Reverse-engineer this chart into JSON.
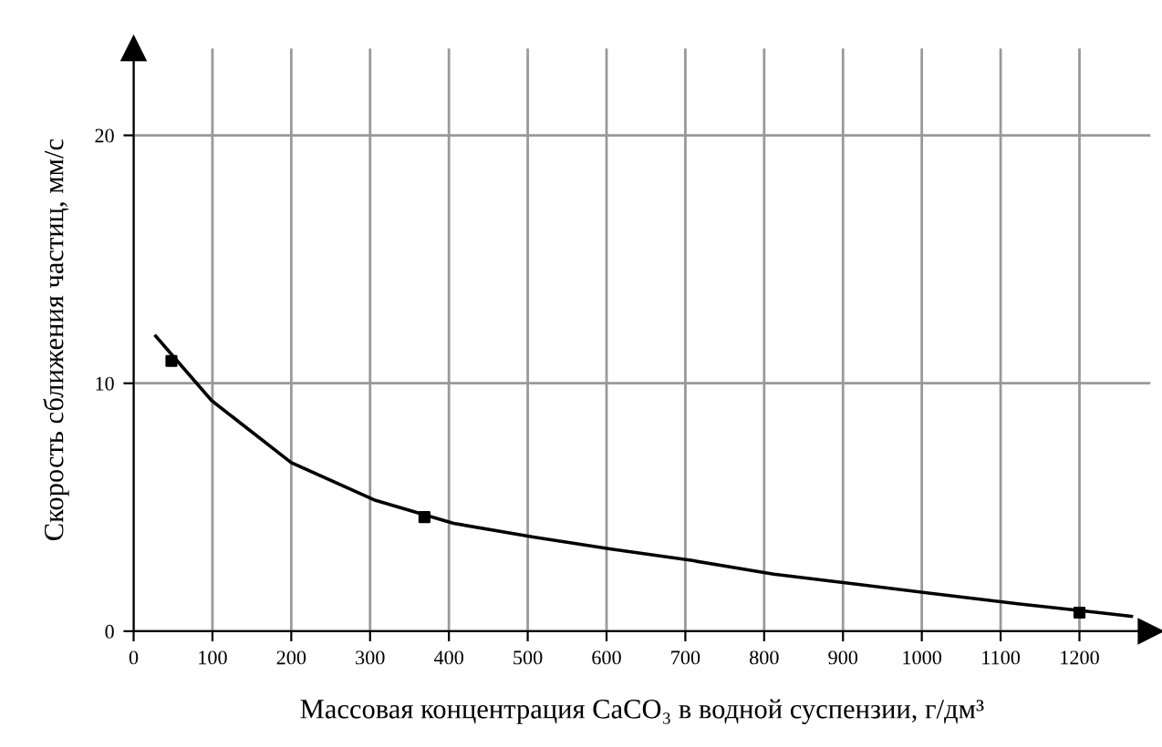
{
  "chart_data": {
    "type": "line",
    "xlabel": "Массовая концентрация CaCO₃ в водной суспензии, г/дм³",
    "ylabel": "Скорость сближения частиц, мм/с",
    "xlim": [
      0,
      1290
    ],
    "ylim": [
      0,
      23.5
    ],
    "xticks": [
      0,
      100,
      200,
      300,
      400,
      500,
      600,
      700,
      800,
      900,
      1000,
      1100,
      1200
    ],
    "yticks": [
      0,
      10,
      20
    ],
    "grid": true,
    "series": [
      {
        "color": "#000000",
        "marker": "none",
        "line_style": "solid",
        "x": [
          28,
          99,
          200,
          305,
          406,
          507,
          608,
          709,
          812,
          917,
          1018,
          1124,
          1225,
          1266
        ],
        "values": [
          11.9,
          9.3,
          6.8,
          5.3,
          4.35,
          3.8,
          3.3,
          2.85,
          2.3,
          1.9,
          1.5,
          1.1,
          0.75,
          0.6
        ]
      },
      {
        "type": "scatter",
        "color": "#000000",
        "marker": "square",
        "x": [
          48,
          369,
          1200
        ],
        "values": [
          10.9,
          4.6,
          0.75
        ]
      }
    ]
  }
}
